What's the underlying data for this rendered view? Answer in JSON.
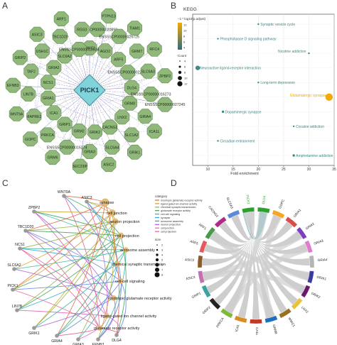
{
  "panels": {
    "a": {
      "letter": "A"
    },
    "b": {
      "letter": "B"
    },
    "c": {
      "letter": "C"
    },
    "d": {
      "letter": "D"
    }
  },
  "network": {
    "hub": "PICK1",
    "node_color": "#8fb87a",
    "hub_color": "#7fd3d9",
    "nodes": [
      "WWC1",
      "ENSSSCP00000020892",
      "PTPN13",
      "AGO2",
      "ENSSSCP00000026725",
      "TIAM1",
      "ARF5",
      "GRM7",
      "RFC4",
      "ENSSSCP00000022402",
      "SLC6A3",
      "ZPBP2",
      "DLG4",
      "ENSSSCP00000016273",
      "ENSSSCP00000027245",
      "GRM8",
      "GRIA4",
      "ICA1L",
      "LNX2",
      "SLC1A2",
      "GRIK1",
      "CACNG2",
      "SLC6A4",
      "ASIC2",
      "GRIK2",
      "GRIA3",
      "SEC23IP",
      "GRM2",
      "ENSSSCP00000016274",
      "GRM6",
      "GRIP1",
      "PRKCA",
      "GOPC",
      "ICA1",
      "MAPRE2",
      "WNT9A",
      "GRIA1",
      "LIN7B",
      "EFNB3",
      "NCS1",
      "TAF2",
      "GRIP2",
      "GRIA2",
      "USH1C",
      "ASIC3",
      "SLC6A2",
      "TBC1D20",
      "ARF1",
      "ENSSSCP00000018534",
      "RGS3"
    ]
  },
  "kegg": {
    "title": "KEGG",
    "colorbar_title": "−1 * log10(p.adjust)",
    "colorbar_ticks": [
      "12",
      "10",
      "8",
      "6",
      "4"
    ],
    "count_title": "Count",
    "count_ticks": [
      "4",
      "6",
      "8",
      "10",
      "12"
    ],
    "xlabel": "Fold enrichment",
    "x_ticks": [
      "10",
      "15",
      "20",
      "25",
      "30",
      "35"
    ]
  },
  "chart_data": {
    "type": "scatter",
    "title": "KEGG",
    "xlabel": "Fold enrichment",
    "xlim": [
      7,
      35
    ],
    "points": [
      {
        "label": "Synaptic vesicle cycle",
        "x": 20,
        "y": 1,
        "count": 4,
        "color": "#3d8b86"
      },
      {
        "label": "Phospholipase D signaling pathway",
        "x": 12,
        "y": 2,
        "count": 4,
        "color": "#3d8b86"
      },
      {
        "label": "Nicotine addiction",
        "x": 30,
        "y": 3,
        "count": 4,
        "color": "#3d8b86"
      },
      {
        "label": "Neuroactive ligand-receptor interaction",
        "x": 8,
        "y": 4,
        "count": 8,
        "color": "#3d8b86"
      },
      {
        "label": "Long-term depression",
        "x": 20,
        "y": 5,
        "count": 4,
        "color": "#3d8b86"
      },
      {
        "label": "Glutamatergic synapse",
        "x": 34,
        "y": 6,
        "count": 12,
        "color": "#f2a900"
      },
      {
        "label": "Dopaminergic synapse",
        "x": 13,
        "y": 7,
        "count": 5,
        "color": "#3d8b86"
      },
      {
        "label": "Cocaine addiction",
        "x": 27,
        "y": 8,
        "count": 4,
        "color": "#3d8b86"
      },
      {
        "label": "Circadian entrainment",
        "x": 12,
        "y": 9,
        "count": 4,
        "color": "#3d8b86"
      },
      {
        "label": "Amphetamine addiction",
        "x": 27,
        "y": 10,
        "count": 5,
        "color": "#3d8b86"
      }
    ]
  },
  "cnet": {
    "genes": [
      {
        "label": "WNT9A"
      },
      {
        "label": "ASIC3"
      },
      {
        "label": "ZPBP2"
      },
      {
        "label": "TBC1D20"
      },
      {
        "label": "NCS1"
      },
      {
        "label": "SLC6A2"
      },
      {
        "label": "PICK1"
      },
      {
        "label": "LIN7B"
      },
      {
        "label": "GRIK1"
      },
      {
        "label": "GRIA4"
      },
      {
        "label": "GRIA3"
      },
      {
        "label": "EFNB3"
      },
      {
        "label": "DLG4"
      }
    ],
    "terms": [
      {
        "label": "synapse",
        "size": 1
      },
      {
        "label": "cell junction",
        "size": 0.85
      },
      {
        "label": "neuron projection",
        "size": 0.7
      },
      {
        "label": "cell projection",
        "size": 0.7
      },
      {
        "label": "acrosome assembly",
        "size": 0.5
      },
      {
        "label": "chemical synaptic transmission",
        "size": 0.6
      },
      {
        "label": "cell-cell signaling",
        "size": 0.55
      },
      {
        "label": "ionotropic glutamate receptor activity",
        "size": 0.55
      },
      {
        "label": "ligand-gated ion channel activity",
        "size": 0.55
      },
      {
        "label": "glutamate receptor activity",
        "size": 0.5
      }
    ],
    "legend_title": "category",
    "legend_items": [
      {
        "label": "ionotropic glutamate receptor activity",
        "color": "#e8643c"
      },
      {
        "label": "ligand-gated ion channel activity",
        "color": "#c9a227"
      },
      {
        "label": "chemical synaptic transmission",
        "color": "#8db33a"
      },
      {
        "label": "glutamate receptor activity",
        "color": "#3aa35a"
      },
      {
        "label": "cell-cell signaling",
        "color": "#34b5a0"
      },
      {
        "label": "synapse",
        "color": "#32a8d6"
      },
      {
        "label": "acrosome assembly",
        "color": "#5a7fe0"
      },
      {
        "label": "neuron projection",
        "color": "#a25ee0"
      },
      {
        "label": "cell junction",
        "color": "#e05ec0"
      },
      {
        "label": "cell projection",
        "color": "#e85a8a"
      }
    ],
    "size_title": "size",
    "size_ticks": [
      "2",
      "3",
      "4",
      "5",
      "6",
      "7",
      "8"
    ]
  },
  "chord": {
    "labels": [
      {
        "label": "DLG4",
        "color": "#2ca02c"
      },
      {
        "label": "GOPC"
      },
      {
        "label": "GRIA1"
      },
      {
        "label": "GRIA2"
      },
      {
        "label": "GRIA3"
      },
      {
        "label": "GRIA4"
      },
      {
        "label": "GRIK1"
      },
      {
        "label": "GRIK2"
      },
      {
        "label": "LNX2"
      },
      {
        "label": "WWC1"
      },
      {
        "label": "GRM8"
      },
      {
        "label": "CA1L"
      },
      {
        "label": "ICA1"
      },
      {
        "label": "PRKCA"
      },
      {
        "label": "GRIP2"
      },
      {
        "label": "GRIP1"
      },
      {
        "label": "ASIC3"
      },
      {
        "label": "ASIC2"
      },
      {
        "label": "ARF5"
      },
      {
        "label": "ARF1"
      },
      {
        "label": "CACNG2"
      },
      {
        "label": "SLC6A3"
      },
      {
        "label": "PICK1",
        "color": "#2ca02c"
      }
    ]
  }
}
